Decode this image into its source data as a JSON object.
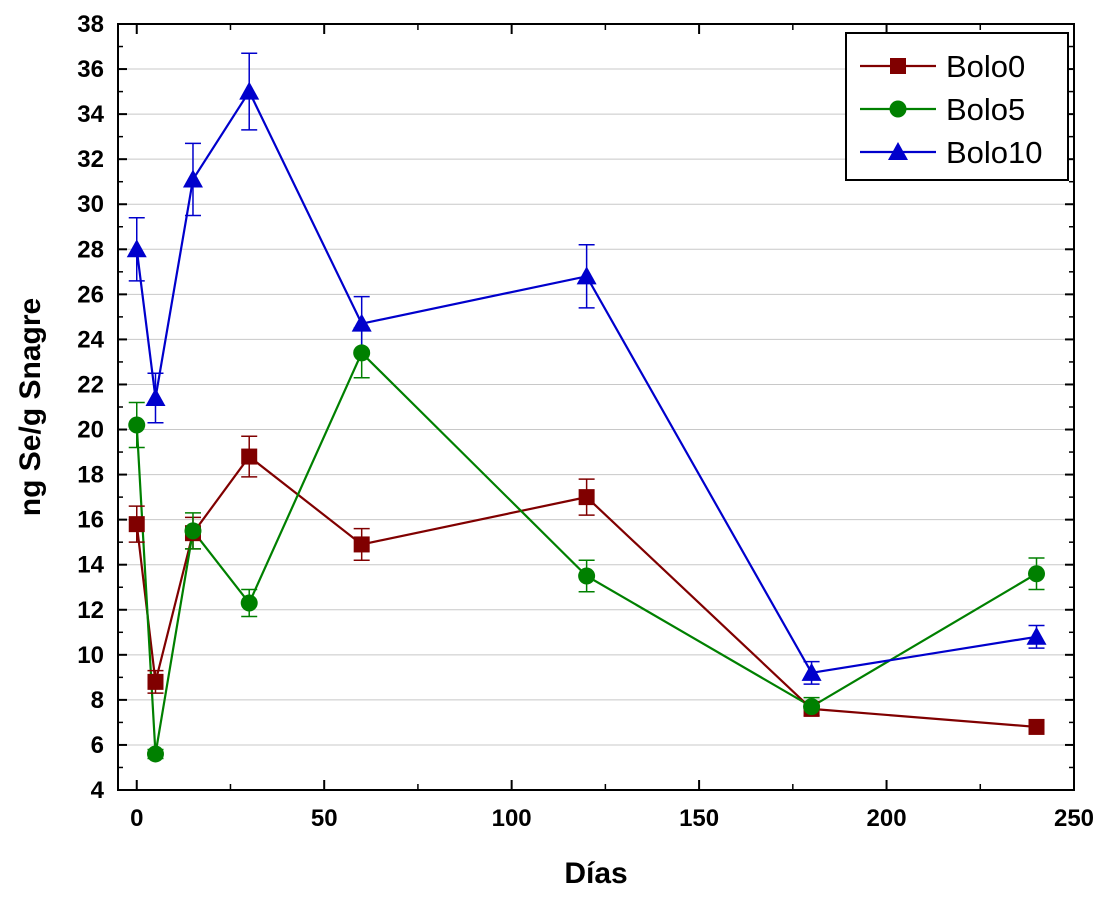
{
  "chart_data": {
    "type": "line",
    "xlabel": "Días",
    "ylabel": "ng Se/g Snagre",
    "xlim": [
      -5,
      250
    ],
    "ylim": [
      4,
      38
    ],
    "xticks": [
      0,
      50,
      100,
      150,
      200,
      250
    ],
    "yticks": [
      4,
      6,
      8,
      10,
      12,
      14,
      16,
      18,
      20,
      22,
      24,
      26,
      28,
      30,
      32,
      34,
      36,
      38
    ],
    "grid": "horizontal",
    "legend_position": "top-right",
    "x": [
      0,
      5,
      15,
      30,
      60,
      120,
      180,
      240
    ],
    "series": [
      {
        "name": "Bolo0",
        "color": "#800000",
        "marker": "square",
        "values": [
          15.8,
          8.8,
          15.4,
          18.8,
          14.9,
          17.0,
          7.6,
          6.8
        ],
        "errors": [
          0.8,
          0.5,
          0.7,
          0.9,
          0.7,
          0.8,
          0.3,
          0.2
        ]
      },
      {
        "name": "Bolo5",
        "color": "#008000",
        "marker": "circle",
        "values": [
          20.2,
          5.6,
          15.5,
          12.3,
          23.4,
          13.5,
          7.7,
          13.6
        ],
        "errors": [
          1.0,
          0.2,
          0.8,
          0.6,
          1.1,
          0.7,
          0.4,
          0.7
        ]
      },
      {
        "name": "Bolo10",
        "color": "#0000CC",
        "marker": "triangle",
        "values": [
          28.0,
          21.4,
          31.1,
          35.0,
          24.7,
          26.8,
          9.2,
          10.8
        ],
        "errors": [
          1.4,
          1.1,
          1.6,
          1.7,
          1.2,
          1.4,
          0.5,
          0.5
        ]
      }
    ]
  }
}
